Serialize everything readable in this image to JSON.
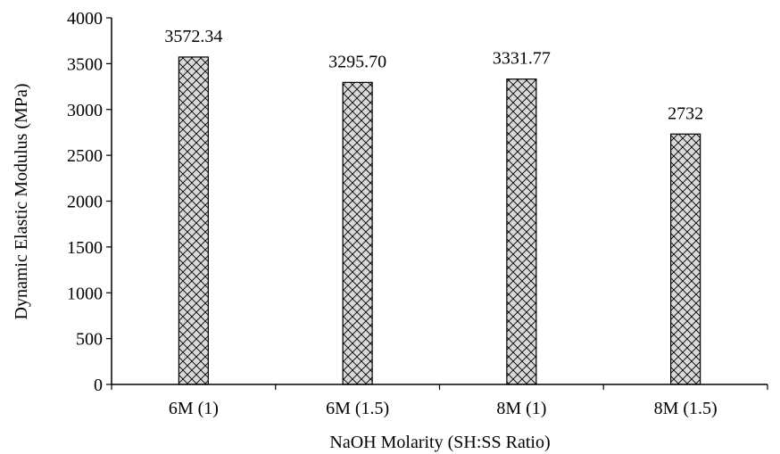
{
  "chart_data": {
    "type": "bar",
    "title": "",
    "xlabel": "NaOH Molarity (SH:SS Ratio)",
    "ylabel": "Dynamic Elastic Modulus (MPa)",
    "categories": [
      "6M (1)",
      "6M (1.5)",
      "8M (1)",
      "8M (1.5)"
    ],
    "values": [
      3572.34,
      3295.7,
      3331.77,
      2732
    ],
    "data_labels": [
      "3572.34",
      "3295.70",
      "3331.77",
      "2732"
    ],
    "ylim": [
      0,
      4000
    ],
    "yticks": [
      0,
      500,
      1000,
      1500,
      2000,
      2500,
      3000,
      3500,
      4000
    ],
    "grid": false,
    "legend": "none",
    "bar_fill": "#d9d9d9",
    "bar_pattern": "diagonal-crosshatch",
    "bar_stroke": "#000000"
  }
}
